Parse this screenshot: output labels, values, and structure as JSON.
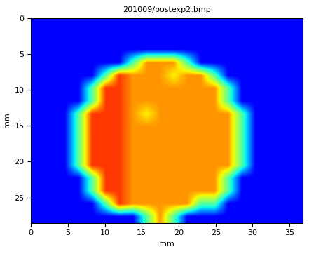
{
  "chart_data": {
    "type": "heatmap",
    "title": "201009/postexp2.bmp",
    "x_label": "mm",
    "y_label": "mm",
    "xlim": [
      0,
      36.8
    ],
    "ylim": [
      28.5,
      0
    ],
    "xticks": [
      0,
      5,
      10,
      15,
      20,
      25,
      30,
      35
    ],
    "yticks": [
      0,
      5,
      10,
      15,
      20,
      25
    ],
    "color_range": [
      0,
      100
    ],
    "grid": false,
    "cells": [
      [
        12,
        12,
        12,
        12,
        12,
        12,
        12,
        12,
        12,
        12,
        12,
        12,
        12,
        12,
        12,
        12,
        12,
        12,
        12,
        12
      ],
      [
        12,
        12,
        12,
        12,
        12,
        12,
        12,
        12,
        12,
        12,
        12,
        12,
        12,
        12,
        12,
        12,
        12,
        12,
        12,
        12
      ],
      [
        12,
        12,
        12,
        12,
        12,
        12,
        12,
        12,
        12,
        12,
        12,
        12,
        12,
        12,
        12,
        12,
        12,
        12,
        12,
        12
      ],
      [
        12,
        12,
        12,
        12,
        12,
        12,
        12,
        45,
        75,
        75,
        75,
        45,
        12,
        12,
        12,
        12,
        12,
        12,
        12,
        12
      ],
      [
        12,
        12,
        12,
        12,
        12,
        45,
        85,
        75,
        75,
        75,
        65,
        75,
        75,
        45,
        12,
        12,
        12,
        12,
        12,
        12
      ],
      [
        12,
        12,
        12,
        12,
        45,
        85,
        85,
        75,
        75,
        75,
        75,
        75,
        75,
        75,
        45,
        12,
        12,
        12,
        12,
        12
      ],
      [
        12,
        12,
        12,
        12,
        45,
        85,
        85,
        75,
        75,
        75,
        75,
        75,
        75,
        75,
        45,
        12,
        12,
        12,
        12,
        12
      ],
      [
        12,
        12,
        12,
        45,
        85,
        85,
        85,
        75,
        65,
        75,
        75,
        75,
        75,
        75,
        75,
        45,
        12,
        12,
        12,
        12
      ],
      [
        12,
        12,
        12,
        45,
        85,
        85,
        85,
        75,
        75,
        75,
        75,
        75,
        75,
        75,
        75,
        45,
        12,
        12,
        12,
        12
      ],
      [
        12,
        12,
        12,
        45,
        85,
        85,
        85,
        75,
        75,
        75,
        75,
        75,
        75,
        75,
        75,
        45,
        12,
        12,
        12,
        12
      ],
      [
        12,
        12,
        12,
        45,
        85,
        85,
        85,
        75,
        75,
        75,
        75,
        75,
        75,
        75,
        75,
        45,
        12,
        12,
        12,
        12
      ],
      [
        12,
        12,
        12,
        45,
        85,
        85,
        85,
        75,
        75,
        75,
        75,
        75,
        75,
        75,
        75,
        45,
        12,
        12,
        12,
        12
      ],
      [
        12,
        12,
        12,
        12,
        45,
        85,
        85,
        75,
        75,
        75,
        75,
        75,
        75,
        75,
        45,
        12,
        12,
        12,
        12,
        12
      ],
      [
        12,
        12,
        12,
        12,
        45,
        85,
        85,
        75,
        75,
        75,
        75,
        75,
        75,
        75,
        45,
        12,
        12,
        12,
        12,
        12
      ],
      [
        12,
        12,
        12,
        12,
        12,
        45,
        85,
        75,
        75,
        75,
        75,
        75,
        45,
        45,
        12,
        12,
        12,
        12,
        12,
        12
      ],
      [
        12,
        12,
        12,
        12,
        12,
        12,
        12,
        12,
        45,
        75,
        45,
        12,
        12,
        12,
        12,
        12,
        12,
        12,
        12,
        12
      ]
    ]
  }
}
